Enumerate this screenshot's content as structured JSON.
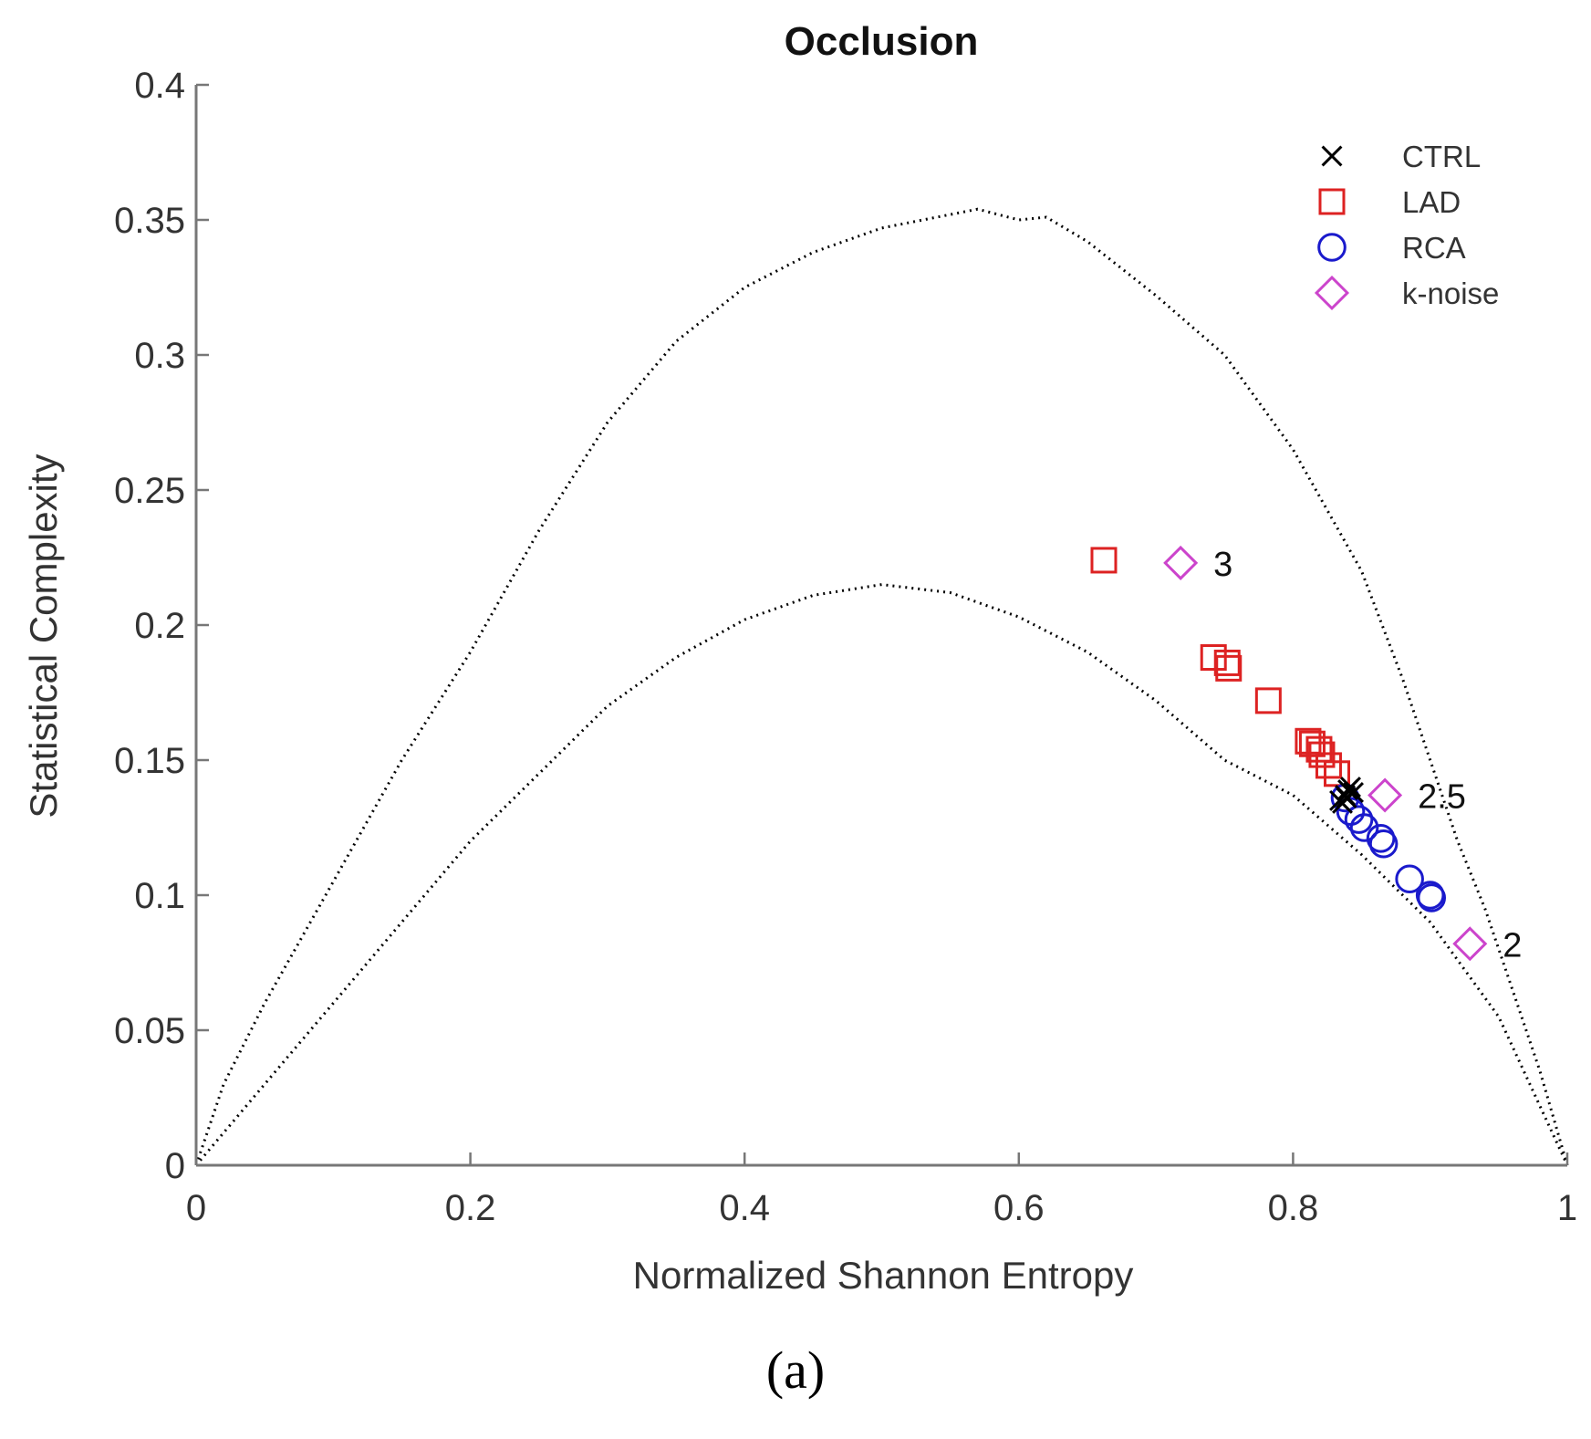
{
  "caption": "(a)",
  "chart_data": {
    "type": "scatter",
    "title": "Occlusion",
    "xlabel": "Normalized Shannon Entropy",
    "ylabel": "Statistical Complexity",
    "xlim": [
      0,
      1
    ],
    "ylim": [
      0,
      0.4
    ],
    "xticks": [
      0,
      0.2,
      0.4,
      0.6,
      0.8,
      1
    ],
    "xtick_labels": [
      "0",
      "0.2",
      "0.4",
      "0.6",
      "0.8",
      "1"
    ],
    "yticks": [
      0,
      0.05,
      0.1,
      0.15,
      0.2,
      0.25,
      0.3,
      0.35,
      0.4
    ],
    "ytick_labels": [
      "0",
      "0.05",
      "0.1",
      "0.15",
      "0.2",
      "0.25",
      "0.3",
      "0.35",
      "0.4"
    ],
    "grid": false,
    "legend_position": "top-right",
    "bounds": {
      "upper": [
        [
          0,
          0
        ],
        [
          0.02,
          0.03
        ],
        [
          0.05,
          0.06
        ],
        [
          0.1,
          0.105
        ],
        [
          0.15,
          0.15
        ],
        [
          0.2,
          0.19
        ],
        [
          0.25,
          0.235
        ],
        [
          0.3,
          0.275
        ],
        [
          0.35,
          0.305
        ],
        [
          0.4,
          0.325
        ],
        [
          0.45,
          0.338
        ],
        [
          0.5,
          0.347
        ],
        [
          0.55,
          0.352
        ],
        [
          0.57,
          0.354
        ],
        [
          0.6,
          0.35
        ],
        [
          0.62,
          0.351
        ],
        [
          0.65,
          0.342
        ],
        [
          0.7,
          0.322
        ],
        [
          0.75,
          0.3
        ],
        [
          0.8,
          0.265
        ],
        [
          0.85,
          0.22
        ],
        [
          0.88,
          0.18
        ],
        [
          0.9,
          0.15
        ],
        [
          0.92,
          0.12
        ],
        [
          0.94,
          0.095
        ],
        [
          0.96,
          0.065
        ],
        [
          0.98,
          0.035
        ],
        [
          1,
          0
        ]
      ],
      "lower": [
        [
          0,
          0
        ],
        [
          0.05,
          0.03
        ],
        [
          0.1,
          0.06
        ],
        [
          0.15,
          0.09
        ],
        [
          0.2,
          0.12
        ],
        [
          0.25,
          0.145
        ],
        [
          0.3,
          0.17
        ],
        [
          0.35,
          0.188
        ],
        [
          0.4,
          0.202
        ],
        [
          0.45,
          0.211
        ],
        [
          0.5,
          0.215
        ],
        [
          0.55,
          0.212
        ],
        [
          0.6,
          0.203
        ],
        [
          0.65,
          0.19
        ],
        [
          0.7,
          0.172
        ],
        [
          0.75,
          0.15
        ],
        [
          0.8,
          0.137
        ],
        [
          0.85,
          0.115
        ],
        [
          0.9,
          0.09
        ],
        [
          0.95,
          0.055
        ],
        [
          1,
          0
        ]
      ]
    },
    "series": [
      {
        "name": "CTRL",
        "marker": "x",
        "color": "#000000",
        "points": [
          [
            0.834,
            0.135
          ],
          [
            0.838,
            0.137
          ],
          [
            0.84,
            0.139
          ],
          [
            0.842,
            0.14
          ],
          [
            0.836,
            0.134
          ],
          [
            0.844,
            0.138
          ],
          [
            0.839,
            0.136
          ]
        ]
      },
      {
        "name": "LAD",
        "marker": "square",
        "color": "#dd2222",
        "points": [
          [
            0.662,
            0.224
          ],
          [
            0.742,
            0.188
          ],
          [
            0.752,
            0.186
          ],
          [
            0.753,
            0.184
          ],
          [
            0.782,
            0.172
          ],
          [
            0.811,
            0.157
          ],
          [
            0.814,
            0.156
          ],
          [
            0.819,
            0.154
          ],
          [
            0.821,
            0.152
          ],
          [
            0.826,
            0.148
          ],
          [
            0.832,
            0.145
          ]
        ]
      },
      {
        "name": "RCA",
        "marker": "circle",
        "color": "#1a1acc",
        "points": [
          [
            0.838,
            0.136
          ],
          [
            0.842,
            0.131
          ],
          [
            0.848,
            0.128
          ],
          [
            0.852,
            0.125
          ],
          [
            0.864,
            0.121
          ],
          [
            0.866,
            0.119
          ],
          [
            0.885,
            0.106
          ],
          [
            0.9,
            0.1
          ],
          [
            0.901,
            0.099
          ]
        ]
      },
      {
        "name": "k-noise",
        "marker": "diamond",
        "color": "#cc44cc",
        "points": [
          [
            0.718,
            0.223
          ],
          [
            0.867,
            0.137
          ],
          [
            0.929,
            0.082
          ]
        ]
      }
    ],
    "annotations": [
      {
        "text": "3",
        "x": 0.718,
        "y": 0.223
      },
      {
        "text": "2.5",
        "x": 0.867,
        "y": 0.137
      },
      {
        "text": "2",
        "x": 0.929,
        "y": 0.082
      }
    ]
  }
}
